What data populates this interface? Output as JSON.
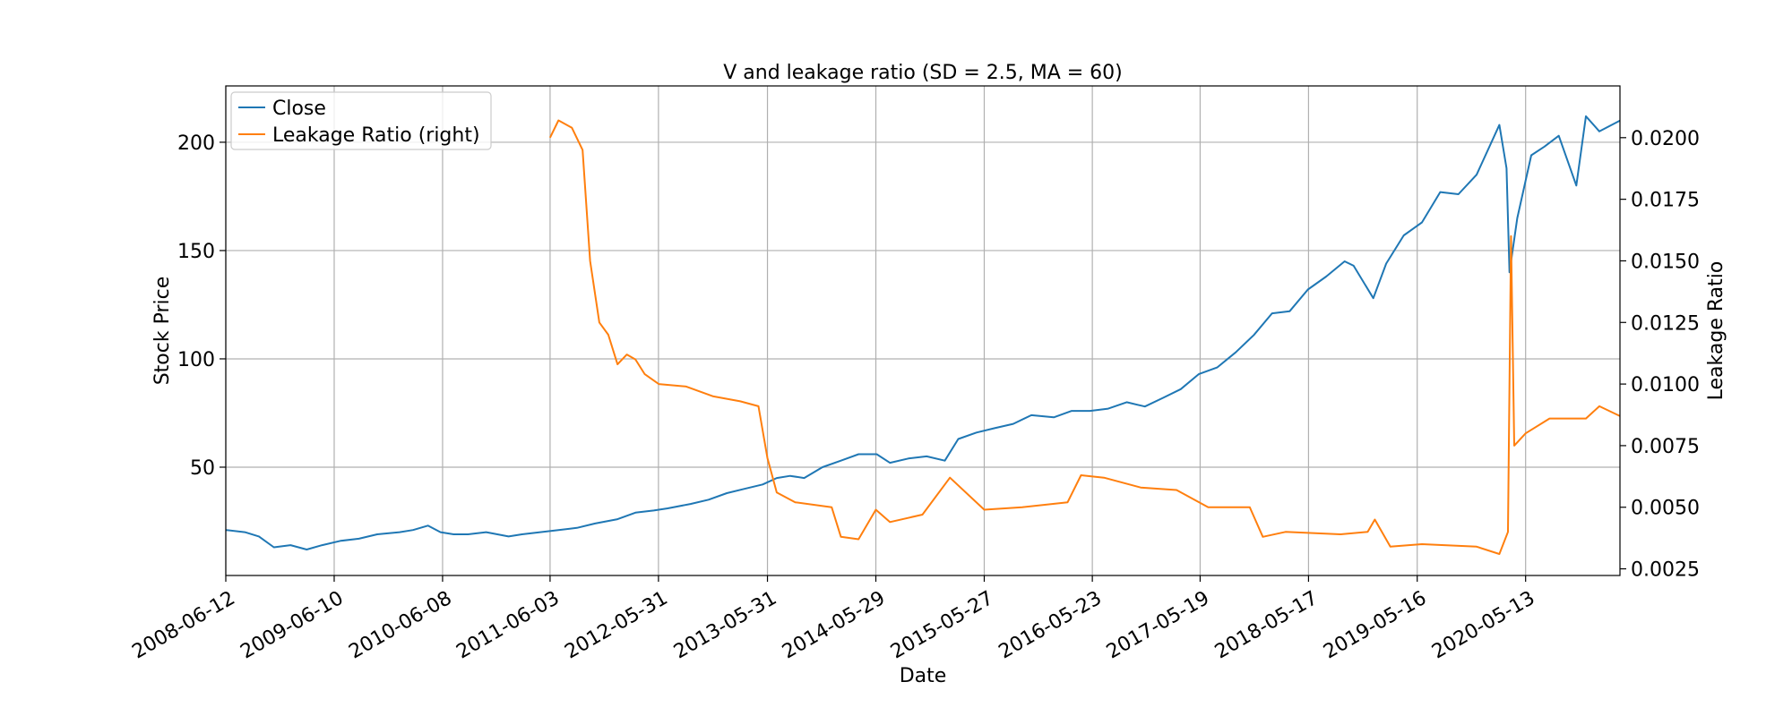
{
  "chart_data": {
    "type": "line",
    "title": "V and leakage ratio (SD = 2.5, MA = 60)",
    "xlabel": "Date",
    "ylabel": "Stock Price",
    "ylabel_right": "Leakage Ratio",
    "xlim": [
      "2008-06-12",
      "2021-03-25"
    ],
    "x_tick_labels": [
      "2008-06-12",
      "2009-06-10",
      "2010-06-08",
      "2011-06-03",
      "2012-05-31",
      "2013-05-31",
      "2014-05-29",
      "2015-05-27",
      "2016-05-23",
      "2017-05-19",
      "2018-05-17",
      "2019-05-16",
      "2020-05-13"
    ],
    "ylim": [
      0,
      226
    ],
    "y_ticks": [
      50,
      100,
      150,
      200
    ],
    "ylim_right": [
      0.00223,
      0.0221
    ],
    "y_ticks_right": [
      "0.0025",
      "0.0050",
      "0.0075",
      "0.0100",
      "0.0125",
      "0.0150",
      "0.0175",
      "0.0200"
    ],
    "grid": true,
    "legend_position": "top-left",
    "colors": {
      "close": "#1f77b4",
      "leakage": "#ff7f0e"
    },
    "series": [
      {
        "name": "Close",
        "axis": "left",
        "points": [
          [
            "2008-06-12",
            21
          ],
          [
            "2008-08-15",
            20
          ],
          [
            "2008-10-01",
            18
          ],
          [
            "2008-11-20",
            13
          ],
          [
            "2009-01-15",
            14
          ],
          [
            "2009-03-10",
            12
          ],
          [
            "2009-05-01",
            14
          ],
          [
            "2009-07-01",
            16
          ],
          [
            "2009-09-01",
            17
          ],
          [
            "2009-11-01",
            19
          ],
          [
            "2010-01-15",
            20
          ],
          [
            "2010-03-01",
            21
          ],
          [
            "2010-04-20",
            23
          ],
          [
            "2010-06-01",
            20
          ],
          [
            "2010-07-15",
            19
          ],
          [
            "2010-09-01",
            19
          ],
          [
            "2010-11-01",
            20
          ],
          [
            "2011-01-15",
            18
          ],
          [
            "2011-03-01",
            19
          ],
          [
            "2011-05-01",
            20
          ],
          [
            "2011-07-01",
            21
          ],
          [
            "2011-09-01",
            22
          ],
          [
            "2011-11-01",
            24
          ],
          [
            "2012-01-15",
            26
          ],
          [
            "2012-03-15",
            29
          ],
          [
            "2012-05-15",
            30
          ],
          [
            "2012-07-01",
            31
          ],
          [
            "2012-09-15",
            33
          ],
          [
            "2012-11-15",
            35
          ],
          [
            "2013-01-15",
            38
          ],
          [
            "2013-03-15",
            40
          ],
          [
            "2013-05-15",
            42
          ],
          [
            "2013-07-01",
            45
          ],
          [
            "2013-08-15",
            46
          ],
          [
            "2013-10-01",
            45
          ],
          [
            "2013-12-01",
            50
          ],
          [
            "2014-02-01",
            53
          ],
          [
            "2014-04-01",
            56
          ],
          [
            "2014-06-01",
            56
          ],
          [
            "2014-07-15",
            52
          ],
          [
            "2014-09-15",
            54
          ],
          [
            "2014-11-15",
            55
          ],
          [
            "2015-01-15",
            53
          ],
          [
            "2015-03-01",
            63
          ],
          [
            "2015-05-01",
            66
          ],
          [
            "2015-07-01",
            68
          ],
          [
            "2015-09-01",
            70
          ],
          [
            "2015-11-01",
            74
          ],
          [
            "2016-01-15",
            73
          ],
          [
            "2016-03-15",
            76
          ],
          [
            "2016-05-15",
            76
          ],
          [
            "2016-07-15",
            77
          ],
          [
            "2016-09-15",
            80
          ],
          [
            "2016-11-15",
            78
          ],
          [
            "2017-01-15",
            82
          ],
          [
            "2017-03-15",
            86
          ],
          [
            "2017-05-15",
            93
          ],
          [
            "2017-07-15",
            96
          ],
          [
            "2017-09-15",
            103
          ],
          [
            "2017-11-15",
            111
          ],
          [
            "2018-01-15",
            121
          ],
          [
            "2018-03-15",
            122
          ],
          [
            "2018-05-15",
            132
          ],
          [
            "2018-07-15",
            138
          ],
          [
            "2018-09-15",
            145
          ],
          [
            "2018-10-15",
            143
          ],
          [
            "2018-12-20",
            128
          ],
          [
            "2019-02-01",
            144
          ],
          [
            "2019-04-01",
            157
          ],
          [
            "2019-06-01",
            163
          ],
          [
            "2019-08-01",
            177
          ],
          [
            "2019-10-01",
            176
          ],
          [
            "2019-12-01",
            185
          ],
          [
            "2020-02-15",
            208
          ],
          [
            "2020-03-10",
            188
          ],
          [
            "2020-03-20",
            140
          ],
          [
            "2020-04-15",
            165
          ],
          [
            "2020-06-01",
            194
          ],
          [
            "2020-07-15",
            198
          ],
          [
            "2020-09-01",
            203
          ],
          [
            "2020-10-30",
            180
          ],
          [
            "2020-12-01",
            212
          ],
          [
            "2021-01-15",
            205
          ],
          [
            "2021-03-25",
            210
          ]
        ]
      },
      {
        "name": "Leakage Ratio (right)",
        "axis": "right",
        "points": [
          [
            "2011-06-03",
            0.02
          ],
          [
            "2011-07-01",
            0.0207
          ],
          [
            "2011-08-15",
            0.0204
          ],
          [
            "2011-09-20",
            0.0195
          ],
          [
            "2011-10-15",
            0.015
          ],
          [
            "2011-11-15",
            0.0125
          ],
          [
            "2011-12-15",
            0.012
          ],
          [
            "2012-01-15",
            0.0108
          ],
          [
            "2012-02-15",
            0.0112
          ],
          [
            "2012-03-15",
            0.011
          ],
          [
            "2012-04-15",
            0.0104
          ],
          [
            "2012-06-01",
            0.01
          ],
          [
            "2012-09-01",
            0.0099
          ],
          [
            "2012-12-01",
            0.0095
          ],
          [
            "2013-03-01",
            0.0093
          ],
          [
            "2013-05-01",
            0.0091
          ],
          [
            "2013-05-31",
            0.007
          ],
          [
            "2013-07-01",
            0.0056
          ],
          [
            "2013-09-01",
            0.0052
          ],
          [
            "2014-01-01",
            0.005
          ],
          [
            "2014-02-01",
            0.0038
          ],
          [
            "2014-04-01",
            0.0037
          ],
          [
            "2014-05-29",
            0.0049
          ],
          [
            "2014-07-15",
            0.0044
          ],
          [
            "2014-11-01",
            0.0047
          ],
          [
            "2015-02-01",
            0.0062
          ],
          [
            "2015-05-27",
            0.0049
          ],
          [
            "2015-10-01",
            0.005
          ],
          [
            "2016-03-01",
            0.0052
          ],
          [
            "2016-04-15",
            0.0063
          ],
          [
            "2016-07-01",
            0.0062
          ],
          [
            "2016-11-01",
            0.0058
          ],
          [
            "2017-03-01",
            0.0057
          ],
          [
            "2017-06-15",
            0.005
          ],
          [
            "2017-11-01",
            0.005
          ],
          [
            "2017-12-15",
            0.0038
          ],
          [
            "2018-03-01",
            0.004
          ],
          [
            "2018-09-01",
            0.0039
          ],
          [
            "2018-12-01",
            0.004
          ],
          [
            "2018-12-25",
            0.0045
          ],
          [
            "2019-02-15",
            0.0034
          ],
          [
            "2019-06-01",
            0.0035
          ],
          [
            "2019-12-01",
            0.0034
          ],
          [
            "2020-02-15",
            0.0031
          ],
          [
            "2020-03-15",
            0.004
          ],
          [
            "2020-03-25",
            0.016
          ],
          [
            "2020-04-05",
            0.0075
          ],
          [
            "2020-05-13",
            0.008
          ],
          [
            "2020-08-01",
            0.0086
          ],
          [
            "2020-12-01",
            0.0086
          ],
          [
            "2021-01-15",
            0.0091
          ],
          [
            "2021-03-25",
            0.0087
          ]
        ]
      }
    ]
  }
}
